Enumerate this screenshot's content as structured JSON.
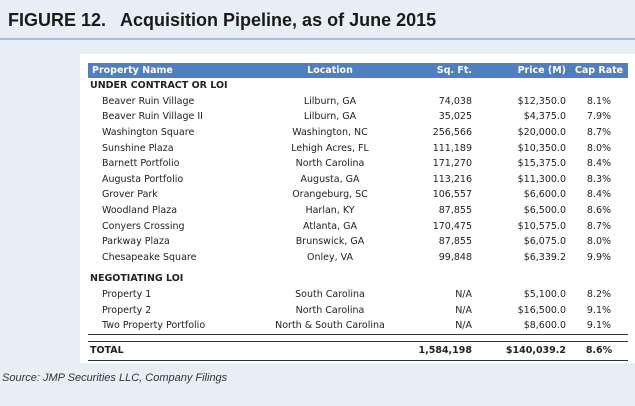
{
  "figure": {
    "number": "FIGURE 12.",
    "title": "Acquisition Pipeline, as of June 2015"
  },
  "table": {
    "columns": [
      "Property Name",
      "Location",
      "Sq. Ft.",
      "Price (M)",
      "Cap Rate"
    ],
    "sections": [
      {
        "label": "UNDER CONTRACT OR LOI",
        "rows": [
          [
            "Beaver Ruin Village",
            "Lilburn, GA",
            "74,038",
            "$12,350.0",
            "8.1%"
          ],
          [
            "Beaver Ruin Village II",
            "Lilburn, GA",
            "35,025",
            "$4,375.0",
            "7.9%"
          ],
          [
            "Washington Square",
            "Washington, NC",
            "256,566",
            "$20,000.0",
            "8.7%"
          ],
          [
            "Sunshine Plaza",
            "Lehigh Acres, FL",
            "111,189",
            "$10,350.0",
            "8.0%"
          ],
          [
            "Barnett Portfolio",
            "North Carolina",
            "171,270",
            "$15,375.0",
            "8.4%"
          ],
          [
            "Augusta Portfolio",
            "Augusta, GA",
            "113,216",
            "$11,300.0",
            "8.3%"
          ],
          [
            "Grover Park",
            "Orangeburg, SC",
            "106,557",
            "$6,600.0",
            "8.4%"
          ],
          [
            "Woodland Plaza",
            "Harlan, KY",
            "87,855",
            "$6,500.0",
            "8.6%"
          ],
          [
            "Conyers Crossing",
            "Atlanta, GA",
            "170,475",
            "$10,575.0",
            "8.7%"
          ],
          [
            "Parkway Plaza",
            "Brunswick, GA",
            "87,855",
            "$6,075.0",
            "8.0%"
          ],
          [
            "Chesapeake Square",
            "Onley, VA",
            "99,848",
            "$6,339.2",
            "9.9%"
          ]
        ]
      },
      {
        "label": "NEGOTIATING LOI",
        "rows": [
          [
            "Property 1",
            "South Carolina",
            "N/A",
            "$5,100.0",
            "8.2%"
          ],
          [
            "Property 2",
            "North Carolina",
            "N/A",
            "$16,500.0",
            "9.1%"
          ],
          [
            "Two Property Portfolio",
            "North & South Carolina",
            "N/A",
            "$8,600.0",
            "9.1%"
          ]
        ]
      }
    ],
    "total": [
      "TOTAL",
      "",
      "1,584,198",
      "$140,039.2",
      "8.6%"
    ]
  },
  "source": "Source: JMP Securities LLC, Company Filings",
  "colors": {
    "header_bg": "#4f7fbf",
    "page_bg": "#e8eef6"
  }
}
